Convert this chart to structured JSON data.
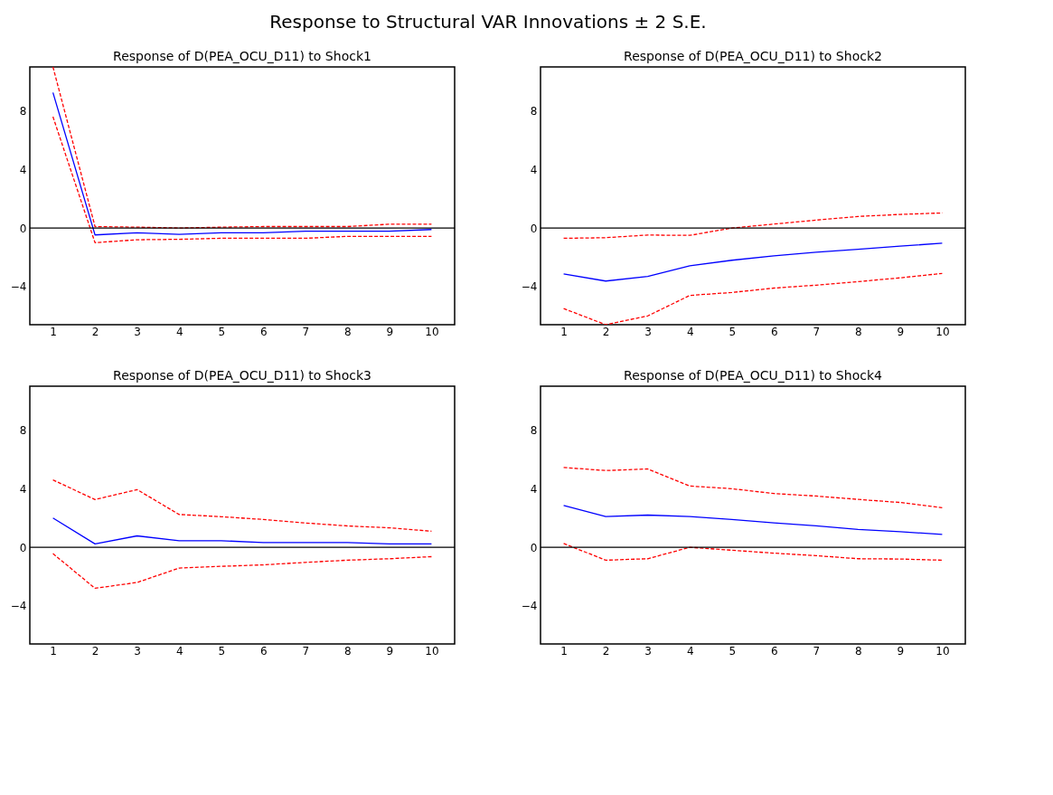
{
  "chart_data": [
    {
      "type": "line",
      "title": "Response of D(PEA_OCU_D11) to Shock1",
      "annotations": [
        "Response to Structural VAR Innovations ± 2 S.E."
      ],
      "categories": [
        "1",
        "2",
        "3",
        "4",
        "5",
        "6",
        "7",
        "8",
        "9",
        "10"
      ],
      "ylim": [
        -6.6,
        11
      ],
      "yticks": [
        -4,
        0,
        4,
        8
      ],
      "grid": false,
      "ref_lines": [
        {
          "axis": "y",
          "value": 0,
          "color": "#000000"
        }
      ],
      "series": [
        {
          "color": "#0000ff",
          "line_style": "solid",
          "values": [
            9.25,
            -0.47,
            -0.32,
            -0.43,
            -0.32,
            -0.32,
            -0.22,
            -0.22,
            -0.22,
            -0.1
          ]
        },
        {
          "color": "#ff0000",
          "line_style": "dashed",
          "values": [
            11.0,
            0.1,
            0.06,
            0.0,
            0.06,
            0.1,
            0.1,
            0.1,
            0.26,
            0.26
          ]
        },
        {
          "color": "#ff0000",
          "line_style": "dashed",
          "values": [
            7.6,
            -1.0,
            -0.8,
            -0.77,
            -0.7,
            -0.7,
            -0.7,
            -0.57,
            -0.57,
            -0.57
          ]
        }
      ]
    },
    {
      "type": "line",
      "title": "Response of D(PEA_OCU_D11) to Shock2",
      "categories": [
        "1",
        "2",
        "3",
        "4",
        "5",
        "6",
        "7",
        "8",
        "9",
        "10"
      ],
      "ylim": [
        -6.6,
        11
      ],
      "yticks": [
        -4,
        0,
        4,
        8
      ],
      "grid": false,
      "ref_lines": [
        {
          "axis": "y",
          "value": 0,
          "color": "#000000"
        }
      ],
      "series": [
        {
          "color": "#0000ff",
          "line_style": "solid",
          "values": [
            -3.14,
            -3.62,
            -3.3,
            -2.58,
            -2.2,
            -1.9,
            -1.65,
            -1.45,
            -1.24,
            -1.03
          ]
        },
        {
          "color": "#ff0000",
          "line_style": "dashed",
          "values": [
            -0.7,
            -0.66,
            -0.48,
            -0.5,
            0.0,
            0.27,
            0.54,
            0.79,
            0.93,
            1.03
          ]
        },
        {
          "color": "#ff0000",
          "line_style": "dashed",
          "values": [
            -5.5,
            -6.6,
            -6.0,
            -4.6,
            -4.4,
            -4.1,
            -3.9,
            -3.66,
            -3.4,
            -3.1
          ]
        }
      ]
    },
    {
      "type": "line",
      "title": "Response of D(PEA_OCU_D11) to Shock3",
      "categories": [
        "1",
        "2",
        "3",
        "4",
        "5",
        "6",
        "7",
        "8",
        "9",
        "10"
      ],
      "ylim": [
        -6.6,
        11
      ],
      "yticks": [
        -4,
        0,
        4,
        8
      ],
      "grid": false,
      "ref_lines": [
        {
          "axis": "y",
          "value": 0,
          "color": "#000000"
        }
      ],
      "series": [
        {
          "color": "#0000ff",
          "line_style": "solid",
          "values": [
            2.0,
            0.23,
            0.78,
            0.45,
            0.45,
            0.33,
            0.33,
            0.33,
            0.23,
            0.23
          ]
        },
        {
          "color": "#ff0000",
          "line_style": "dashed",
          "values": [
            4.6,
            3.26,
            3.94,
            2.24,
            2.09,
            1.9,
            1.66,
            1.46,
            1.33,
            1.1
          ]
        },
        {
          "color": "#ff0000",
          "line_style": "dashed",
          "values": [
            -0.43,
            -2.8,
            -2.4,
            -1.42,
            -1.3,
            -1.2,
            -1.03,
            -0.88,
            -0.78,
            -0.64
          ]
        }
      ]
    },
    {
      "type": "line",
      "title": "Response of D(PEA_OCU_D11) to Shock4",
      "categories": [
        "1",
        "2",
        "3",
        "4",
        "5",
        "6",
        "7",
        "8",
        "9",
        "10"
      ],
      "ylim": [
        -6.6,
        11
      ],
      "yticks": [
        -4,
        0,
        4,
        8
      ],
      "grid": false,
      "ref_lines": [
        {
          "axis": "y",
          "value": 0,
          "color": "#000000"
        }
      ],
      "series": [
        {
          "color": "#0000ff",
          "line_style": "solid",
          "values": [
            2.86,
            2.1,
            2.2,
            2.1,
            1.9,
            1.67,
            1.47,
            1.22,
            1.06,
            0.88
          ]
        },
        {
          "color": "#ff0000",
          "line_style": "dashed",
          "values": [
            5.45,
            5.24,
            5.35,
            4.18,
            4.0,
            3.67,
            3.5,
            3.27,
            3.06,
            2.7
          ]
        },
        {
          "color": "#ff0000",
          "line_style": "dashed",
          "values": [
            0.26,
            -0.88,
            -0.78,
            0.0,
            -0.2,
            -0.4,
            -0.57,
            -0.78,
            -0.8,
            -0.88
          ]
        }
      ]
    }
  ]
}
